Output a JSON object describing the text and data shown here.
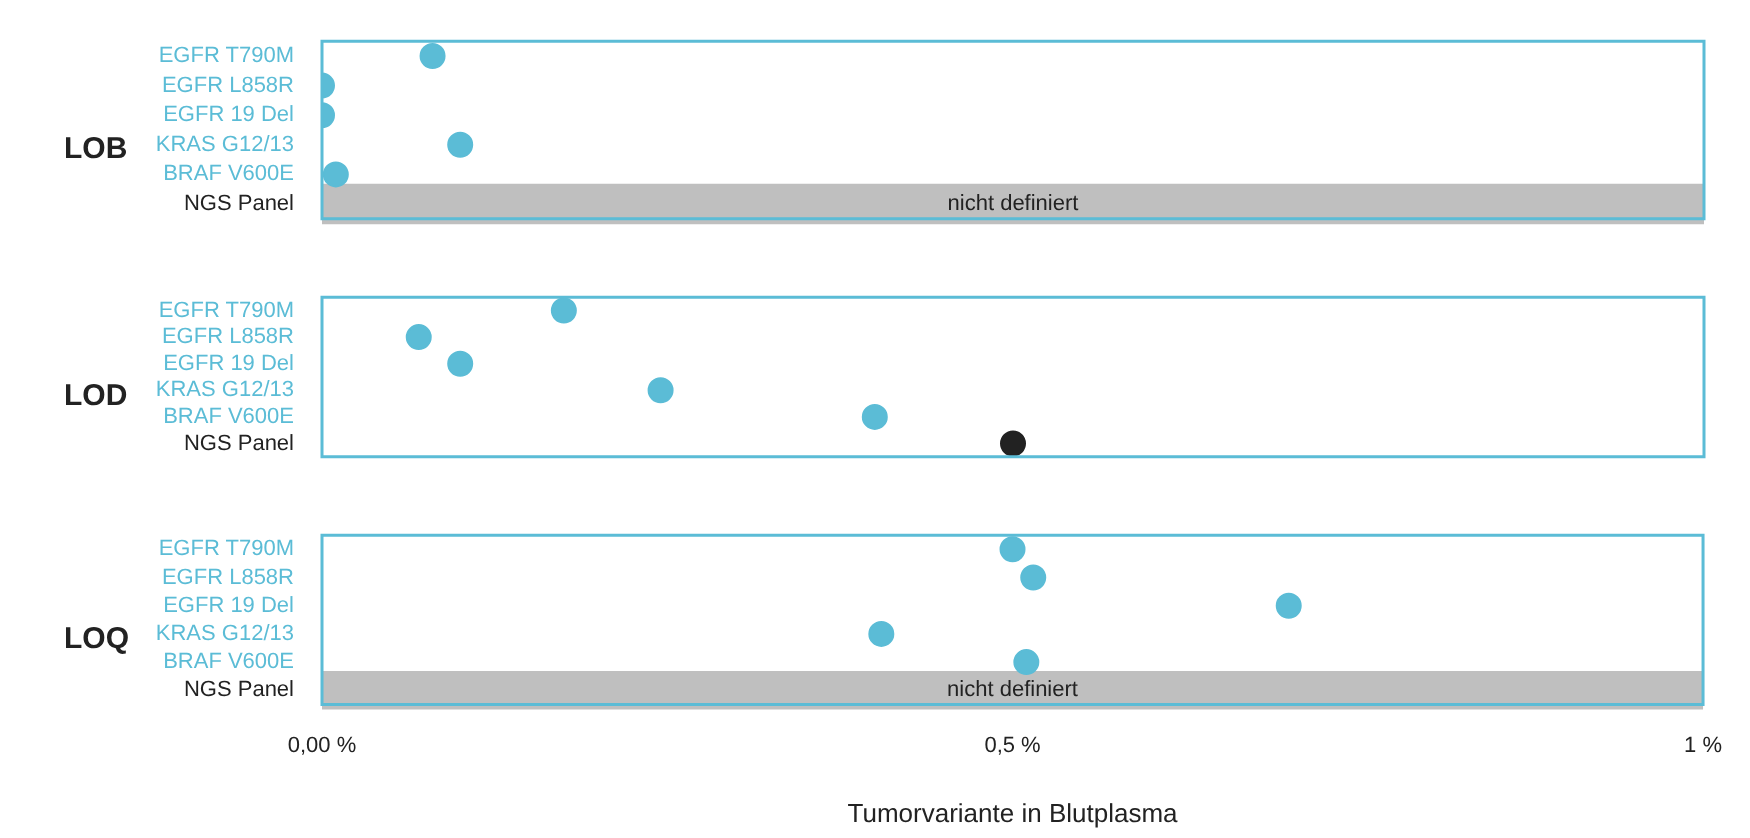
{
  "chart_data": [
    {
      "type": "scatter",
      "orientation": "horizontal",
      "ylabel": "LOB",
      "categories": [
        "EGFR T790M",
        "EGFR L858R",
        "EGFR 19 Del",
        "KRAS G12/13",
        "BRAF V600E",
        "NGS Panel"
      ],
      "values": [
        0.08,
        0,
        0,
        0.1,
        0.01,
        null
      ],
      "colors": [
        "#5bbcd6",
        "#5bbcd6",
        "#5bbcd6",
        "#5bbcd6",
        "#5bbcd6",
        "#222222"
      ],
      "bands": [
        {
          "axis": "y",
          "from": "NGS Panel",
          "to": "NGS Panel",
          "label": "nicht definiert",
          "color": "#bfbfbf"
        }
      ],
      "xlim": [
        0,
        1
      ],
      "tick_labels": "y",
      "grid": false,
      "legend": false,
      "marker": "circle"
    },
    {
      "type": "scatter",
      "orientation": "horizontal",
      "ylabel": "LOD",
      "categories": [
        "EGFR T790M",
        "EGFR L858R",
        "EGFR 19 Del",
        "KRAS G12/13",
        "BRAF V600E",
        "NGS Panel"
      ],
      "values": [
        0.175,
        0.07,
        0.1,
        0.245,
        0.4,
        0.5
      ],
      "colors": [
        "#5bbcd6",
        "#5bbcd6",
        "#5bbcd6",
        "#5bbcd6",
        "#5bbcd6",
        "#222222"
      ],
      "xlim": [
        0,
        1
      ],
      "tick_labels": "y",
      "grid": false,
      "legend": false,
      "marker": "circle"
    },
    {
      "type": "scatter",
      "orientation": "horizontal",
      "ylabel": "LOQ",
      "xlabel": "Tumorvariante in Blutplasma",
      "categories": [
        "EGFR T790M",
        "EGFR L858R",
        "EGFR 19 Del",
        "KRAS G12/13",
        "BRAF V600E",
        "NGS Panel"
      ],
      "values": [
        0.5,
        0.515,
        0.7,
        0.405,
        0.51,
        null
      ],
      "colors": [
        "#5bbcd6",
        "#5bbcd6",
        "#5bbcd6",
        "#5bbcd6",
        "#5bbcd6",
        "#222222"
      ],
      "bands": [
        {
          "axis": "y",
          "from": "NGS Panel",
          "to": "NGS Panel",
          "label": "nicht definiert",
          "color": "#bfbfbf"
        }
      ],
      "xlim": [
        0,
        1
      ],
      "xticks": [
        {
          "value": 0,
          "label": "0,00 %"
        },
        {
          "value": 0.5,
          "label": "0,5 %"
        },
        {
          "value": 1,
          "label": "1 %"
        }
      ],
      "grid": false,
      "legend": false,
      "marker": "circle"
    }
  ]
}
